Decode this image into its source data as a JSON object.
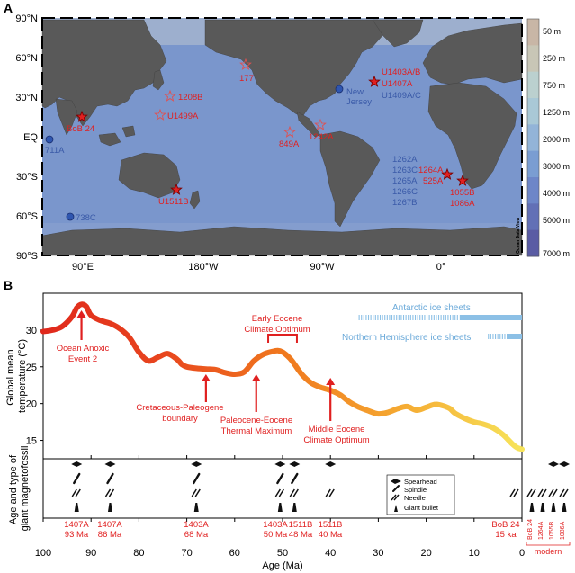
{
  "panels": {
    "a_label": "A",
    "b_label": "B"
  },
  "map": {
    "lat_labels": [
      "90°N",
      "60°N",
      "30°N",
      "EQ",
      "30°S",
      "60°S",
      "90°S"
    ],
    "lon_labels": [
      "90°E",
      "180°W",
      "90°W",
      "0°"
    ],
    "depth_scale": {
      "labels": [
        "50 m",
        "250 m",
        "750 m",
        "1250 m",
        "2000 m",
        "3000 m",
        "4000 m",
        "5000 m",
        "7000 m"
      ],
      "colors": [
        "#c8b6a6",
        "#c8c6b6",
        "#bbd0cf",
        "#a9c8d6",
        "#93b4d8",
        "#7a9dd2",
        "#6d86c8",
        "#6270b6",
        "#5a5ca4"
      ]
    },
    "attribution": "Ocean Data View",
    "sites_red": {
      "u1403": "U1403A/B",
      "u1407": "U1407A",
      "bob24": "BoB 24",
      "s1208": "1208B",
      "s1499": "U1499A",
      "s177": "177",
      "s849": "849A",
      "s1242": "1242A",
      "s1264": "1264A",
      "s525": "525A",
      "s1055": "1055B",
      "s1086": "1086A",
      "u1511": "U1511B"
    },
    "sites_blue": {
      "u1409": "U1409A/C",
      "nj1": "New",
      "nj2": "Jersey",
      "s711": "711A",
      "s738": "738C",
      "walvis": [
        "1262A",
        "1263C",
        "1265A",
        "1266C",
        "1267B"
      ]
    }
  },
  "chart_data": {
    "type": "line",
    "xlabel": "Age (Ma)",
    "ylabel": "Global mean temperature (°C)",
    "xlim": [
      100,
      0
    ],
    "ylim": [
      12.5,
      35
    ],
    "xticks": [
      100,
      90,
      80,
      70,
      60,
      50,
      40,
      30,
      20,
      10,
      0
    ],
    "yticks": [
      15,
      20,
      25,
      30
    ],
    "series": [
      {
        "x": [
          100,
          98,
          96,
          94,
          93,
          92,
          91,
          90,
          88,
          86,
          84,
          82,
          80,
          78,
          76,
          74,
          72,
          71,
          70,
          68,
          66,
          64,
          62,
          60,
          58,
          56,
          54,
          52,
          51,
          50,
          49,
          48,
          46,
          44,
          42,
          40,
          38,
          36,
          34,
          32,
          30,
          28,
          26,
          24,
          22,
          20,
          18,
          16,
          15,
          14,
          12,
          10,
          8,
          6,
          4,
          2,
          1,
          0
        ],
        "y": [
          29.8,
          30.0,
          30.5,
          31.8,
          33.0,
          33.5,
          33.2,
          32.0,
          31.3,
          30.9,
          30.2,
          29.0,
          27.0,
          25.8,
          26.3,
          26.8,
          26.0,
          25.3,
          25.0,
          24.8,
          24.7,
          24.6,
          24.2,
          24.0,
          24.3,
          25.8,
          26.7,
          27.1,
          27.2,
          27.0,
          26.5,
          25.8,
          24.0,
          22.8,
          22.2,
          21.8,
          21.2,
          20.2,
          19.5,
          19.0,
          18.6,
          18.8,
          19.3,
          19.6,
          19.1,
          19.5,
          19.9,
          19.6,
          19.3,
          18.7,
          18.0,
          17.5,
          17.2,
          16.7,
          15.8,
          14.5,
          14.0,
          13.8
        ]
      }
    ],
    "ice_sheets": {
      "antarctic": {
        "label": "Antarctic ice sheets",
        "dashed_from": 34,
        "solid_from": 13,
        "to": 0
      },
      "northern": {
        "label": "Northern Hemisphere ice sheets",
        "dashed_from": 7,
        "solid_from": 3,
        "to": 0
      }
    },
    "events": [
      {
        "label1": "Ocean Anoxic",
        "label2": "Event 2",
        "age": 92
      },
      {
        "label1": "Cretaceous-Paleogene",
        "label2": "boundary",
        "age": 66
      },
      {
        "label1": "Paleocene-Eocene",
        "label2": "Thermal Maximum",
        "age": 56
      },
      {
        "label1": "Early Eocene",
        "label2": "Climate Optimum",
        "age": 51
      },
      {
        "label1": "Middle Eocene",
        "label2": "Climate Optimum",
        "age": 40
      }
    ]
  },
  "fossils": {
    "ylabel1": "Age and type of",
    "ylabel2": "giant magnetofossil",
    "legend": [
      "Spearhead",
      "Spindle",
      "Needle",
      "Giant bullet"
    ],
    "groups": [
      {
        "site": "1407A",
        "age_label": "93 Ma",
        "age": 93
      },
      {
        "site": "1407A",
        "age_label": "86 Ma",
        "age": 86
      },
      {
        "site": "1403A",
        "age_label": "68 Ma",
        "age": 68
      },
      {
        "site": "1403A",
        "age_label": "50 Ma",
        "age": 50.5
      },
      {
        "site": "1511B",
        "age_label": "48 Ma",
        "age": 47.5
      },
      {
        "site": "1511B",
        "age_label": "40 Ma",
        "age": 40
      },
      {
        "site": "BoB 24",
        "age_label": "15 ka",
        "age": 1.5
      }
    ],
    "modern_label": "modern",
    "modern_sites": [
      "BoB 24",
      "1264A",
      "1055B",
      "1086A"
    ]
  }
}
